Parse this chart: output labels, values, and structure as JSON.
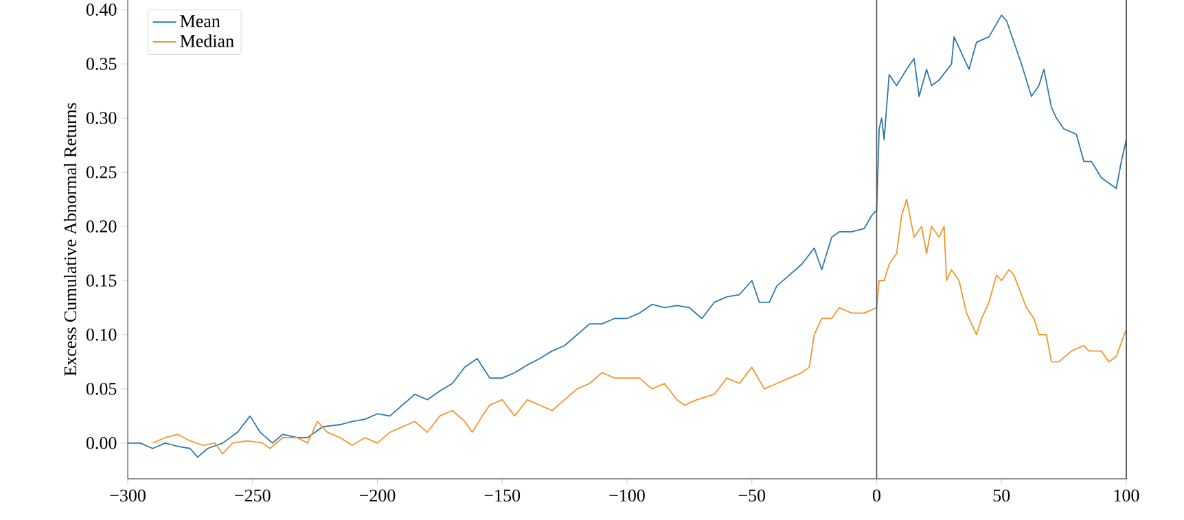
{
  "chart_data": {
    "type": "line",
    "ylabel": "Excess Cumulative Abnormal Returns",
    "xlim": [
      -300,
      100
    ],
    "ylim": [
      -0.033,
      0.409
    ],
    "xticks": [
      {
        "value": -300,
        "label": "−300"
      },
      {
        "value": -250,
        "label": "−250"
      },
      {
        "value": -200,
        "label": "−200"
      },
      {
        "value": -150,
        "label": "−150"
      },
      {
        "value": -100,
        "label": "−100"
      },
      {
        "value": -50,
        "label": "−50"
      },
      0,
      50,
      100
    ],
    "yticks": [
      {
        "value": 0,
        "label": "0.00"
      },
      {
        "value": 0.05,
        "label": "0.05"
      },
      {
        "value": 0.1,
        "label": "0.10"
      },
      {
        "value": 0.15,
        "label": "0.15"
      },
      {
        "value": 0.2,
        "label": "0.20"
      },
      {
        "value": 0.25,
        "label": "0.25"
      },
      {
        "value": 0.3,
        "label": "0.30"
      },
      {
        "value": 0.35,
        "label": "0.35"
      },
      {
        "value": 0.4,
        "label": "0.40"
      }
    ],
    "legend": "top left",
    "grid": false,
    "ref_lines": [
      {
        "axis": "x",
        "value": 0,
        "color": "#555555"
      }
    ],
    "series": [
      {
        "name": "Mean",
        "color": "#2e78a8",
        "x": [
          -300,
          -295,
          -290,
          -285,
          -280,
          -275,
          -272,
          -268,
          -262,
          -256,
          -251,
          -247,
          -242,
          -238,
          -232,
          -228,
          -222,
          -215,
          -210,
          -205,
          -200,
          -195,
          -190,
          -185,
          -180,
          -175,
          -170,
          -165,
          -160,
          -155,
          -150,
          -145,
          -140,
          -135,
          -130,
          -125,
          -120,
          -115,
          -110,
          -105,
          -100,
          -95,
          -90,
          -85,
          -80,
          -75,
          -70,
          -65,
          -60,
          -55,
          -50,
          -47,
          -43,
          -40,
          -35,
          -30,
          -25,
          -22,
          -18,
          -15,
          -10,
          -5,
          -2,
          0,
          1,
          2,
          3,
          5,
          8,
          12,
          15,
          17,
          20,
          22,
          25,
          30,
          31,
          35,
          37,
          40,
          45,
          50,
          52,
          55,
          58,
          62,
          65,
          67,
          70,
          72,
          75,
          80,
          83,
          86,
          90,
          93,
          96,
          98,
          100
        ],
        "values": [
          0.0,
          0.0,
          -0.005,
          0.0,
          -0.003,
          -0.005,
          -0.013,
          -0.005,
          0.0,
          0.01,
          0.025,
          0.01,
          0.0,
          0.008,
          0.005,
          0.005,
          0.015,
          0.017,
          0.02,
          0.022,
          0.027,
          0.025,
          0.035,
          0.045,
          0.04,
          0.048,
          0.055,
          0.07,
          0.078,
          0.06,
          0.06,
          0.065,
          0.072,
          0.078,
          0.085,
          0.09,
          0.1,
          0.11,
          0.11,
          0.115,
          0.115,
          0.12,
          0.128,
          0.125,
          0.127,
          0.125,
          0.115,
          0.13,
          0.135,
          0.137,
          0.15,
          0.13,
          0.13,
          0.145,
          0.155,
          0.165,
          0.18,
          0.16,
          0.19,
          0.195,
          0.195,
          0.198,
          0.21,
          0.215,
          0.29,
          0.3,
          0.28,
          0.34,
          0.33,
          0.345,
          0.355,
          0.32,
          0.345,
          0.33,
          0.335,
          0.35,
          0.375,
          0.355,
          0.345,
          0.37,
          0.375,
          0.395,
          0.39,
          0.37,
          0.35,
          0.32,
          0.33,
          0.345,
          0.31,
          0.3,
          0.29,
          0.285,
          0.26,
          0.26,
          0.245,
          0.24,
          0.235,
          0.26,
          0.28
        ]
      },
      {
        "name": "Median",
        "color": "#f0962c",
        "x": [
          -290,
          -285,
          -280,
          -275,
          -270,
          -265,
          -262,
          -258,
          -252,
          -246,
          -243,
          -238,
          -232,
          -228,
          -224,
          -220,
          -215,
          -210,
          -205,
          -200,
          -195,
          -190,
          -185,
          -180,
          -175,
          -170,
          -165,
          -162,
          -158,
          -155,
          -150,
          -145,
          -140,
          -135,
          -130,
          -125,
          -120,
          -115,
          -110,
          -105,
          -100,
          -95,
          -90,
          -85,
          -80,
          -77,
          -72,
          -65,
          -60,
          -55,
          -50,
          -45,
          -40,
          -35,
          -30,
          -27,
          -25,
          -22,
          -18,
          -15,
          -10,
          -5,
          0,
          1,
          3,
          5,
          8,
          10,
          12,
          15,
          18,
          20,
          22,
          25,
          27,
          28,
          30,
          33,
          36,
          40,
          42,
          45,
          48,
          50,
          53,
          55,
          60,
          63,
          65,
          68,
          70,
          73,
          78,
          83,
          85,
          90,
          93,
          96,
          100
        ],
        "values": [
          0.0,
          0.005,
          0.008,
          0.002,
          -0.002,
          0.0,
          -0.01,
          0.0,
          0.002,
          0.0,
          -0.005,
          0.005,
          0.005,
          0.0,
          0.02,
          0.01,
          0.005,
          -0.002,
          0.005,
          0.0,
          0.01,
          0.015,
          0.02,
          0.01,
          0.025,
          0.03,
          0.02,
          0.01,
          0.025,
          0.035,
          0.04,
          0.025,
          0.04,
          0.035,
          0.03,
          0.04,
          0.05,
          0.055,
          0.065,
          0.06,
          0.06,
          0.06,
          0.05,
          0.055,
          0.04,
          0.035,
          0.04,
          0.045,
          0.06,
          0.055,
          0.07,
          0.05,
          0.055,
          0.06,
          0.065,
          0.07,
          0.1,
          0.115,
          0.115,
          0.125,
          0.12,
          0.12,
          0.125,
          0.15,
          0.15,
          0.165,
          0.175,
          0.21,
          0.225,
          0.19,
          0.2,
          0.175,
          0.2,
          0.19,
          0.2,
          0.15,
          0.16,
          0.15,
          0.12,
          0.1,
          0.115,
          0.13,
          0.155,
          0.15,
          0.16,
          0.155,
          0.125,
          0.115,
          0.1,
          0.1,
          0.075,
          0.075,
          0.085,
          0.09,
          0.085,
          0.085,
          0.075,
          0.08,
          0.105
        ]
      }
    ]
  }
}
